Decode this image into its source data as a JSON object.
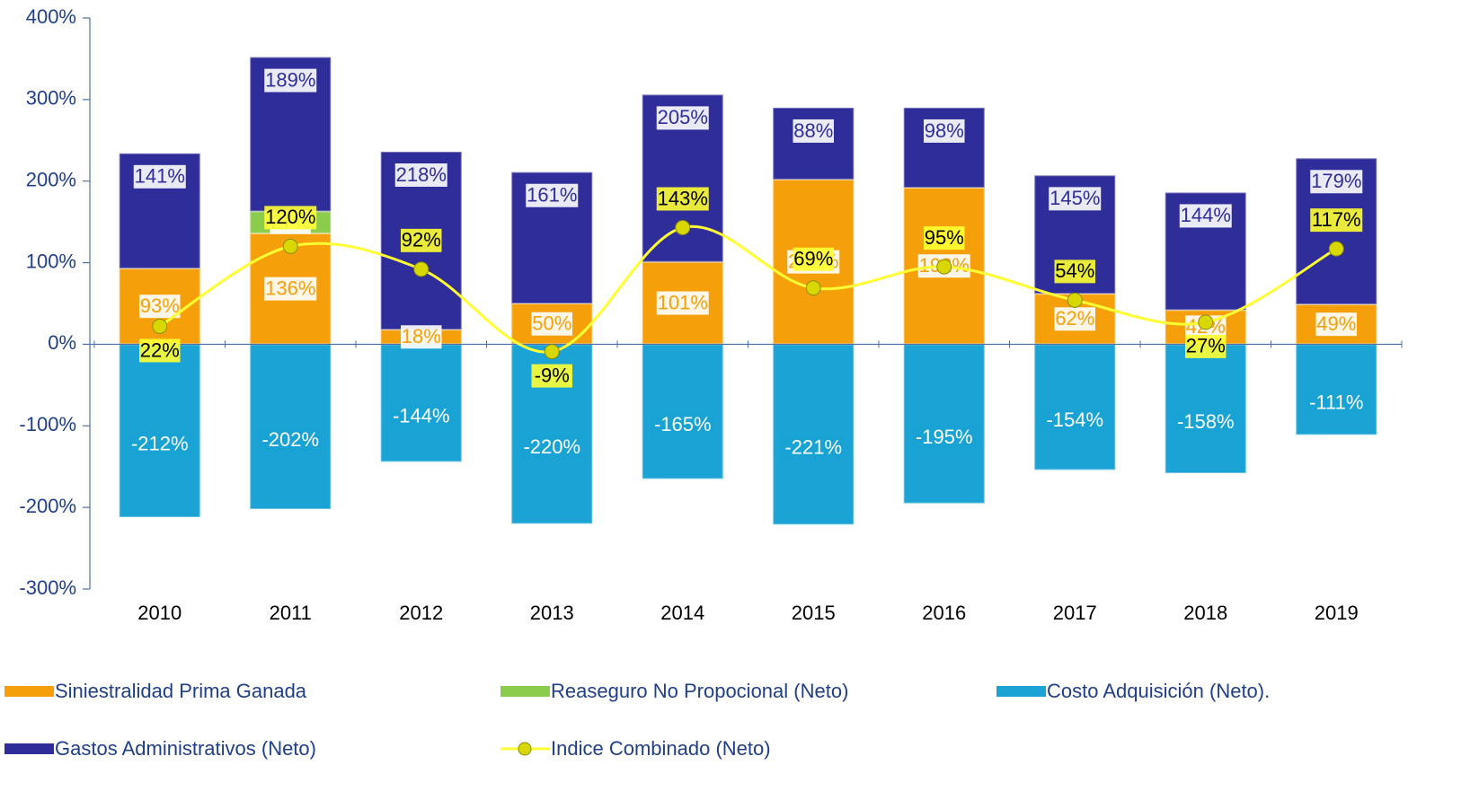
{
  "chart_data": {
    "type": "bar",
    "categories": [
      "2010",
      "2011",
      "2012",
      "2013",
      "2014",
      "2015",
      "2016",
      "2017",
      "2018",
      "2019"
    ],
    "series": [
      {
        "name": "Siniestralidad Prima Ganada",
        "color": "#f5a00a",
        "label_color": "#f5a00a",
        "values": [
          93,
          136,
          18,
          50,
          101,
          202,
          192,
          62,
          42,
          49
        ],
        "value_labels": [
          "93%",
          "136%",
          "18%",
          "50%",
          "101%",
          "202%",
          "192%",
          "62%",
          "42%",
          "49%"
        ]
      },
      {
        "name": "Reaseguro No Propocional (Neto)",
        "color": "#8ccc4c",
        "label_color": "#2f9a3a",
        "values": [
          null,
          27,
          null,
          null,
          null,
          null,
          null,
          null,
          null,
          null
        ],
        "value_labels": [
          null,
          "27%",
          null,
          null,
          null,
          null,
          null,
          null,
          null,
          null
        ]
      },
      {
        "name": "Costo Adquisición (Neto).",
        "color": "#1aa3d4",
        "label_color": "#1aa3d4",
        "values": [
          -212,
          -202,
          -144,
          -220,
          -165,
          -221,
          -195,
          -154,
          -158,
          -111
        ],
        "value_labels": [
          "-212%",
          "-202%",
          "-144%",
          "-220%",
          "-165%",
          "-221%",
          "-195%",
          "-154%",
          "-158%",
          "-111%"
        ]
      },
      {
        "name": "Gastos Administrativos (Neto)",
        "color": "#2e2d99",
        "label_color": "#2e2d99",
        "values": [
          141,
          189,
          218,
          161,
          205,
          88,
          98,
          145,
          144,
          179
        ],
        "value_labels": [
          "141%",
          "189%",
          "218%",
          "161%",
          "205%",
          "88%",
          "98%",
          "145%",
          "144%",
          "179%"
        ]
      },
      {
        "name": "Indice Combinado (Neto)",
        "type": "line",
        "color": "#ffff33",
        "marker_color": "#d8d800",
        "values": [
          22,
          120,
          92,
          -9,
          143,
          69,
          95,
          54,
          27,
          117
        ],
        "value_labels": [
          "22%",
          "120%",
          "92%",
          "-9%",
          "143%",
          "69%",
          "95%",
          "54%",
          "27%",
          "117%"
        ]
      }
    ],
    "ylim": [
      -300,
      400
    ],
    "yticks": [
      {
        "value": -300,
        "label": "-300%"
      },
      {
        "value": -200,
        "label": "-200%"
      },
      {
        "value": -100,
        "label": "-100%"
      },
      {
        "value": 0,
        "label": "0%"
      },
      {
        "value": 100,
        "label": "100%"
      },
      {
        "value": 200,
        "label": "200%"
      },
      {
        "value": 300,
        "label": "300%"
      },
      {
        "value": 400,
        "label": "400%"
      }
    ],
    "grid": false
  }
}
